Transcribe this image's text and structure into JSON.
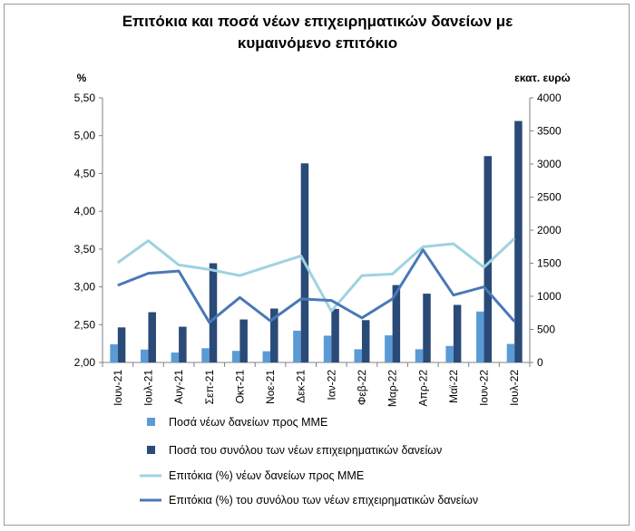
{
  "chart_data": {
    "type": "bar+line",
    "title_line1": "Επιτόκια και ποσά νέων επιχειρηματικών δανείων με",
    "title_line2": "κυμαινόμενο επιτόκιο",
    "left_axis_label": "%",
    "right_axis_label": "εκατ. ευρώ",
    "y_left_lim": [
      2.0,
      5.5
    ],
    "y_left_ticks": [
      "2,00",
      "2,50",
      "3,00",
      "3,50",
      "4,00",
      "4,50",
      "5,00",
      "5,50"
    ],
    "y_right_lim": [
      0,
      4000
    ],
    "y_right_ticks": [
      "0",
      "500",
      "1000",
      "1500",
      "2000",
      "2500",
      "3000",
      "3500",
      "4000"
    ],
    "categories": [
      "Ιουν-21",
      "Ιουλ-21",
      "Αυγ-21",
      "Σεπ-21",
      "Οκτ-21",
      "Νοε-21",
      "Δεκ-21",
      "Ιαν-22",
      "Φεβ-22",
      "Μαρ-22",
      "Απρ-22",
      "Μαϊ-22",
      "Ιουν-22",
      "Ιουλ-22"
    ],
    "series": [
      {
        "name": "Ποσά νέων δανείων προς ΜΜΕ",
        "kind": "bar",
        "axis": "right",
        "color": "#5b9bd5",
        "values": [
          275,
          195,
          150,
          215,
          175,
          170,
          480,
          405,
          200,
          410,
          200,
          250,
          770,
          280
        ]
      },
      {
        "name": "Ποσά του συνόλου των νέων επιχειρηματικών δανείων",
        "kind": "bar",
        "axis": "right",
        "color": "#2a4a78",
        "values": [
          530,
          760,
          540,
          1500,
          650,
          815,
          3010,
          810,
          640,
          1170,
          1040,
          870,
          3120,
          3650
        ]
      },
      {
        "name": "Επιτόκια (%) νέων δανείων προς ΜΜΕ",
        "kind": "line",
        "axis": "left",
        "color": "#9dd3e0",
        "values": [
          3.32,
          3.61,
          3.29,
          3.23,
          3.15,
          3.28,
          3.41,
          2.68,
          3.15,
          3.17,
          3.53,
          3.57,
          3.26,
          3.64
        ]
      },
      {
        "name": "Επιτόκια (%) του συνόλου των νέων επιχειρηματικών δανείων",
        "kind": "line",
        "axis": "left",
        "color": "#4a78b8",
        "values": [
          3.02,
          3.18,
          3.21,
          2.53,
          2.86,
          2.55,
          2.84,
          2.82,
          2.59,
          2.84,
          3.49,
          2.89,
          3.0,
          2.54
        ]
      }
    ],
    "gridlines": false,
    "legend_position": "bottom"
  }
}
